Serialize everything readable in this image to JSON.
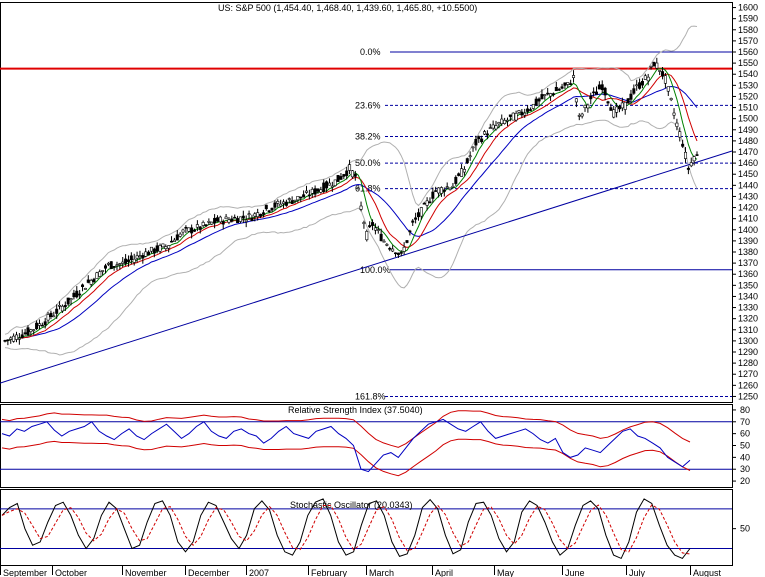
{
  "chart_data": [
    {
      "type": "candlestick",
      "title": "US: S&P 500 (1,454.40, 1,468.40, 1,439.60, 1,465.80, +10.5500)",
      "ylim": [
        1245,
        1605
      ],
      "yticks": [
        1250,
        1260,
        1270,
        1280,
        1290,
        1300,
        1310,
        1320,
        1330,
        1340,
        1350,
        1360,
        1370,
        1380,
        1390,
        1400,
        1410,
        1420,
        1430,
        1440,
        1450,
        1460,
        1470,
        1480,
        1490,
        1500,
        1510,
        1520,
        1530,
        1540,
        1550,
        1560,
        1570,
        1580,
        1590,
        1600
      ],
      "x_labels": [
        "September",
        "October",
        "November",
        "December",
        "2007",
        "February",
        "March",
        "April",
        "May",
        "June",
        "July",
        "August"
      ],
      "fibonacci": [
        {
          "label": "0.0%",
          "value": 1560
        },
        {
          "label": "23.6%",
          "value": 1512
        },
        {
          "label": "38.2%",
          "value": 1484
        },
        {
          "label": "50.0%",
          "value": 1460
        },
        {
          "label": "61.8%",
          "value": 1437
        },
        {
          "label": "100.0%",
          "value": 1364
        },
        {
          "label": "161.8%",
          "value": 1250
        }
      ],
      "resistance_line": 1545,
      "trendline": {
        "start": {
          "date_index": 0,
          "value": 1262
        },
        "end": {
          "date_index": 240,
          "value": 1460
        }
      },
      "price_series": [
        {
          "i": 0,
          "close": 1300
        },
        {
          "i": 8,
          "close": 1308
        },
        {
          "i": 14,
          "close": 1318
        },
        {
          "i": 22,
          "close": 1335
        },
        {
          "i": 28,
          "close": 1350
        },
        {
          "i": 36,
          "close": 1368
        },
        {
          "i": 42,
          "close": 1370
        },
        {
          "i": 48,
          "close": 1378
        },
        {
          "i": 56,
          "close": 1385
        },
        {
          "i": 62,
          "close": 1398
        },
        {
          "i": 68,
          "close": 1402
        },
        {
          "i": 74,
          "close": 1408
        },
        {
          "i": 80,
          "close": 1410
        },
        {
          "i": 86,
          "close": 1412
        },
        {
          "i": 92,
          "close": 1420
        },
        {
          "i": 98,
          "close": 1425
        },
        {
          "i": 104,
          "close": 1430
        },
        {
          "i": 110,
          "close": 1437
        },
        {
          "i": 116,
          "close": 1445
        },
        {
          "i": 120,
          "close": 1455
        },
        {
          "i": 122,
          "close": 1448
        },
        {
          "i": 124,
          "close": 1420
        },
        {
          "i": 126,
          "close": 1395
        },
        {
          "i": 128,
          "close": 1405
        },
        {
          "i": 132,
          "close": 1390
        },
        {
          "i": 136,
          "close": 1382
        },
        {
          "i": 138,
          "close": 1376
        },
        {
          "i": 142,
          "close": 1405
        },
        {
          "i": 146,
          "close": 1420
        },
        {
          "i": 150,
          "close": 1435
        },
        {
          "i": 156,
          "close": 1440
        },
        {
          "i": 160,
          "close": 1455
        },
        {
          "i": 164,
          "close": 1478
        },
        {
          "i": 168,
          "close": 1488
        },
        {
          "i": 172,
          "close": 1495
        },
        {
          "i": 176,
          "close": 1500
        },
        {
          "i": 180,
          "close": 1505
        },
        {
          "i": 184,
          "close": 1512
        },
        {
          "i": 188,
          "close": 1520
        },
        {
          "i": 192,
          "close": 1525
        },
        {
          "i": 196,
          "close": 1530
        },
        {
          "i": 198,
          "close": 1537
        },
        {
          "i": 200,
          "close": 1500
        },
        {
          "i": 204,
          "close": 1518
        },
        {
          "i": 208,
          "close": 1530
        },
        {
          "i": 212,
          "close": 1505
        },
        {
          "i": 216,
          "close": 1512
        },
        {
          "i": 220,
          "close": 1528
        },
        {
          "i": 224,
          "close": 1538
        },
        {
          "i": 226,
          "close": 1550
        },
        {
          "i": 228,
          "close": 1545
        },
        {
          "i": 230,
          "close": 1535
        },
        {
          "i": 232,
          "close": 1515
        },
        {
          "i": 234,
          "close": 1495
        },
        {
          "i": 236,
          "close": 1478
        },
        {
          "i": 238,
          "close": 1455
        },
        {
          "i": 240,
          "close": 1466
        }
      ],
      "total_points": 242
    },
    {
      "type": "line",
      "title": "Relative Strength Index (37.5040)",
      "ylim": [
        15,
        85
      ],
      "yticks": [
        20,
        30,
        40,
        50,
        60,
        70,
        80
      ],
      "levels": [
        30,
        70
      ],
      "values": [
        60,
        58,
        64,
        62,
        66,
        68,
        70,
        63,
        58,
        62,
        64,
        66,
        70,
        62,
        58,
        55,
        60,
        64,
        58,
        55,
        60,
        64,
        68,
        62,
        56,
        60,
        66,
        70,
        62,
        58,
        56,
        62,
        64,
        60,
        58,
        52,
        56,
        62,
        66,
        60,
        58,
        56,
        62,
        64,
        66,
        60,
        56,
        50,
        30,
        28,
        35,
        42,
        44,
        40,
        48,
        56,
        62,
        68,
        70,
        72,
        68,
        64,
        62,
        66,
        70,
        62,
        56,
        58,
        60,
        62,
        64,
        60,
        55,
        52,
        56,
        44,
        40,
        42,
        48,
        46,
        44,
        50,
        56,
        62,
        64,
        58,
        56,
        52,
        48,
        40,
        36,
        32,
        37.5
      ]
    },
    {
      "type": "line",
      "title": "Stochastic Oscillator (20.0343)",
      "ylim": [
        -5,
        110
      ],
      "yticks": [
        50
      ],
      "levels": [
        20,
        80
      ],
      "values": [
        70,
        82,
        88,
        50,
        25,
        30,
        60,
        85,
        90,
        70,
        40,
        20,
        35,
        70,
        90,
        80,
        50,
        20,
        25,
        60,
        88,
        92,
        70,
        30,
        15,
        30,
        70,
        90,
        85,
        60,
        35,
        20,
        40,
        80,
        92,
        78,
        40,
        15,
        10,
        30,
        70,
        90,
        95,
        70,
        30,
        10,
        15,
        55,
        88,
        92,
        70,
        30,
        8,
        12,
        40,
        82,
        94,
        80,
        40,
        12,
        18,
        60,
        88,
        90,
        70,
        35,
        15,
        30,
        75,
        92,
        85,
        60,
        30,
        10,
        20,
        55,
        85,
        92,
        80,
        40,
        10,
        5,
        30,
        75,
        95,
        88,
        55,
        25,
        10,
        5,
        20
      ]
    }
  ]
}
